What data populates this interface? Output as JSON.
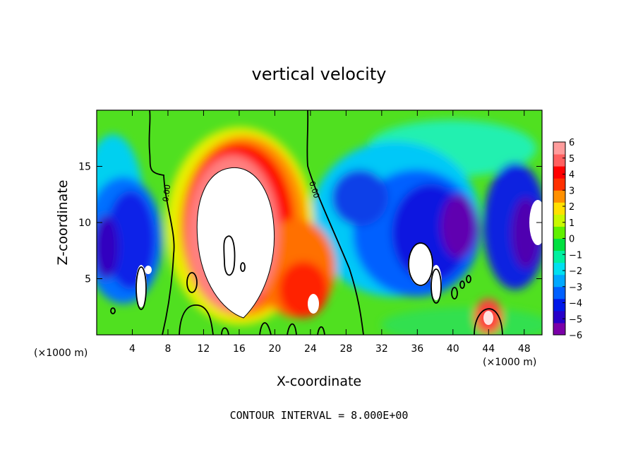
{
  "chart_data": {
    "type": "heatmap",
    "title": "vertical velocity",
    "xlabel": "X-coordinate",
    "ylabel": "Z-coordinate",
    "x_unit_left": "(×1000 m)",
    "x_unit_right": "(×1000 m)",
    "footer": "CONTOUR INTERVAL = 8.000E+00",
    "xlim": [
      0,
      50
    ],
    "ylim": [
      0,
      20
    ],
    "x_ticks": [
      4,
      8,
      12,
      16,
      20,
      24,
      28,
      32,
      36,
      40,
      44,
      48
    ],
    "y_ticks": [
      5,
      10,
      15
    ],
    "colorbar": {
      "min": -6,
      "max": 6,
      "ticks": [
        6,
        5,
        4,
        3,
        2,
        1,
        0,
        -1,
        -2,
        -3,
        -4,
        -5,
        -6
      ],
      "colors": [
        "#7b00a8",
        "#2800c8",
        "#0018e8",
        "#0060ff",
        "#00a8ff",
        "#00e0f0",
        "#00f0a0",
        "#00e040",
        "#60f000",
        "#c8f800",
        "#ffe000",
        "#ff9000",
        "#ff3000",
        "#ff0000",
        "#ff6060",
        "#ff9c9c"
      ]
    },
    "features": [
      {
        "name": "main updraft",
        "x": 16,
        "z": 9,
        "sign": "positive",
        "max": 24
      },
      {
        "name": "right updraft",
        "x": 22,
        "z": 4,
        "sign": "positive"
      },
      {
        "name": "left downdraft",
        "x": 4,
        "z": 8,
        "sign": "negative"
      },
      {
        "name": "right downdraft",
        "x": 37,
        "z": 6,
        "sign": "negative"
      },
      {
        "name": "far-right downdraft",
        "x": 48,
        "z": 9,
        "sign": "negative"
      },
      {
        "name": "surface updraft",
        "x": 44,
        "z": 2,
        "sign": "positive"
      }
    ],
    "contour_labels": [
      "0.00",
      "0.00"
    ]
  }
}
